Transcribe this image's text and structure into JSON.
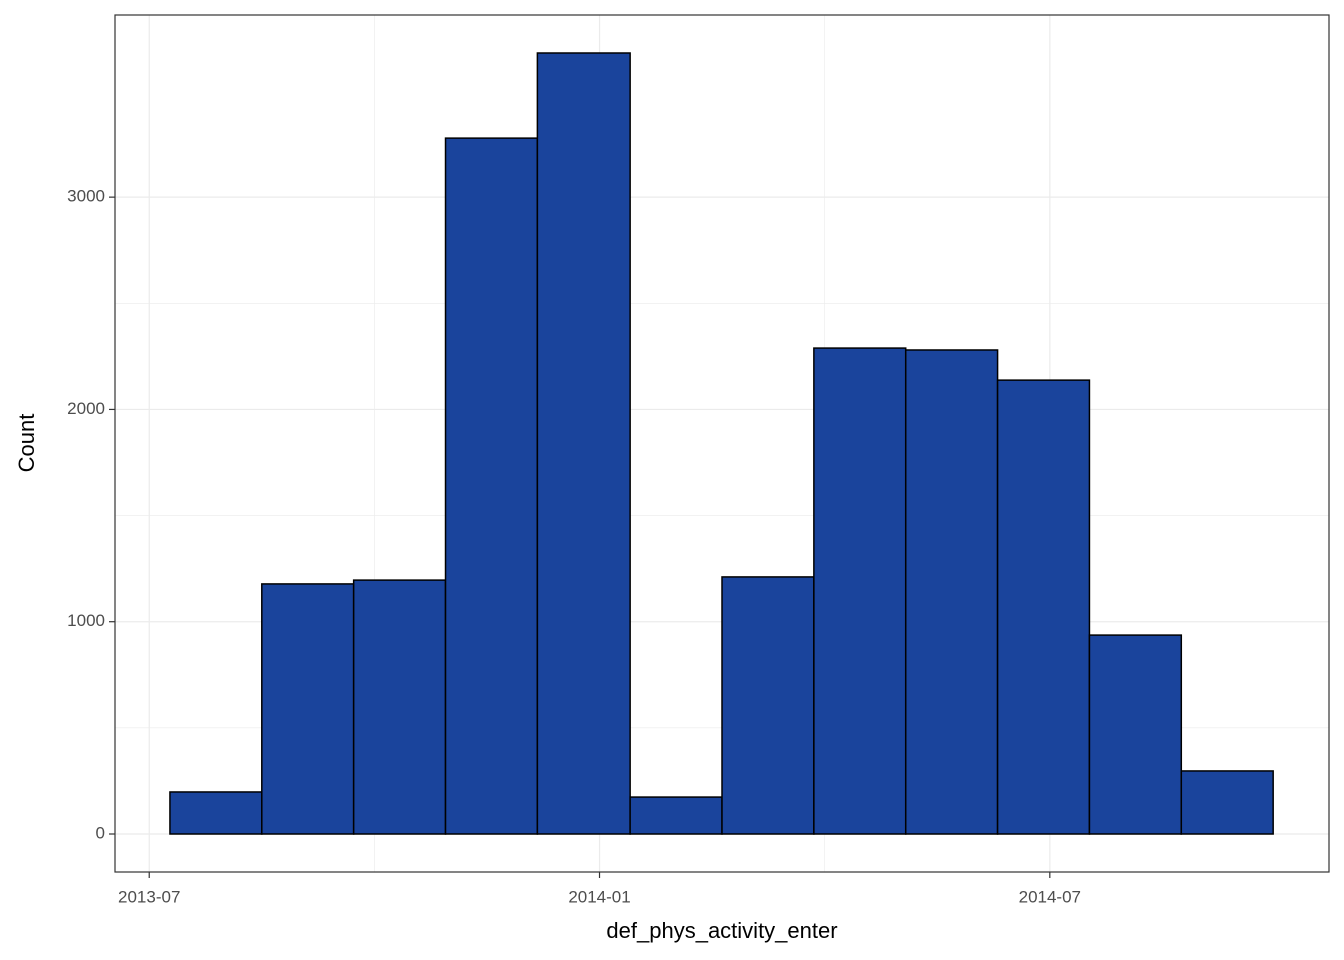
{
  "chart_data": {
    "type": "histogram",
    "x_label": "def_phys_activity_enter",
    "y_label": "Count",
    "bins": [
      2013.523,
      2013.625,
      2013.727,
      2013.829,
      2013.931,
      2014.034,
      2014.136,
      2014.238,
      2014.34,
      2014.442,
      2014.544,
      2014.646,
      2014.748
    ],
    "values": [
      198,
      1178,
      1196,
      3278,
      3679,
      174,
      1211,
      2289,
      2280,
      2138,
      937,
      297
    ],
    "color": "#1a449c",
    "edge_color": "#000000",
    "xlim": [
      2013.462,
      2014.81
    ],
    "xticks": [
      {
        "value": 2013.5,
        "label": "2013-07"
      },
      {
        "value": 2014.0,
        "label": "2014-01"
      },
      {
        "value": 2014.5,
        "label": "2014-07"
      }
    ],
    "ylim": [
      -179,
      3858
    ],
    "yticks": [
      0,
      1000,
      2000,
      3000
    ],
    "grid": true
  }
}
